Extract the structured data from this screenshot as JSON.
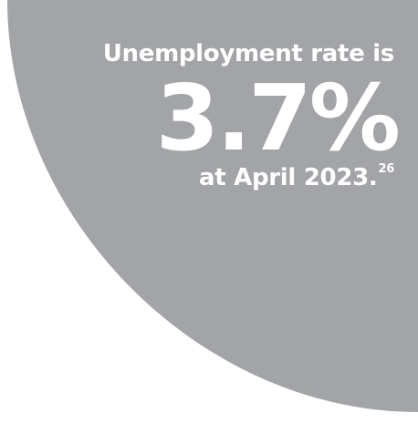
{
  "stat": {
    "lead": "Unemployment rate is",
    "value": "3.7%",
    "trail": "at April 2023.",
    "footnote": "26"
  },
  "colors": {
    "shape": "#a3a4a7",
    "background": "#ffffff",
    "text": "#ffffff"
  }
}
